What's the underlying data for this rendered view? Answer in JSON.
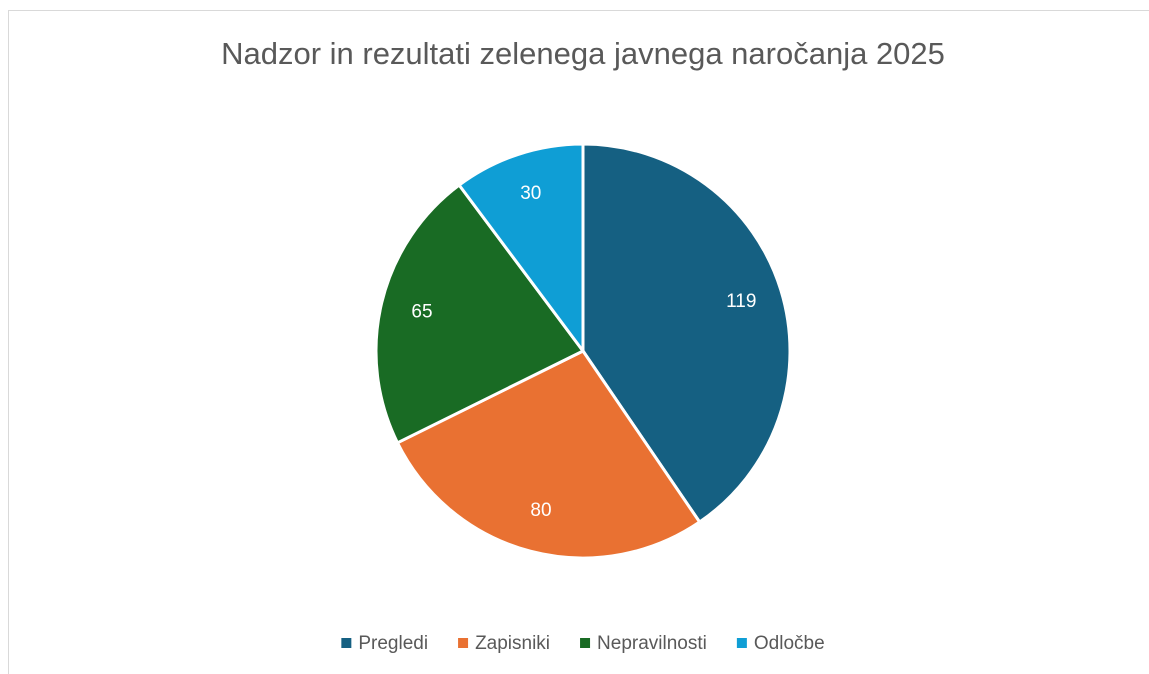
{
  "chart_data": {
    "type": "pie",
    "title": "Nadzor in rezultati zelenega javnega naročanja 2025",
    "categories": [
      "Pregledi",
      "Zapisniki",
      "Nepravilnosti",
      "Odločbe"
    ],
    "values": [
      119,
      80,
      65,
      30
    ],
    "colors": [
      "#156082",
      "#e97132",
      "#196b24",
      "#0f9ed5"
    ],
    "legend": "bottom"
  }
}
